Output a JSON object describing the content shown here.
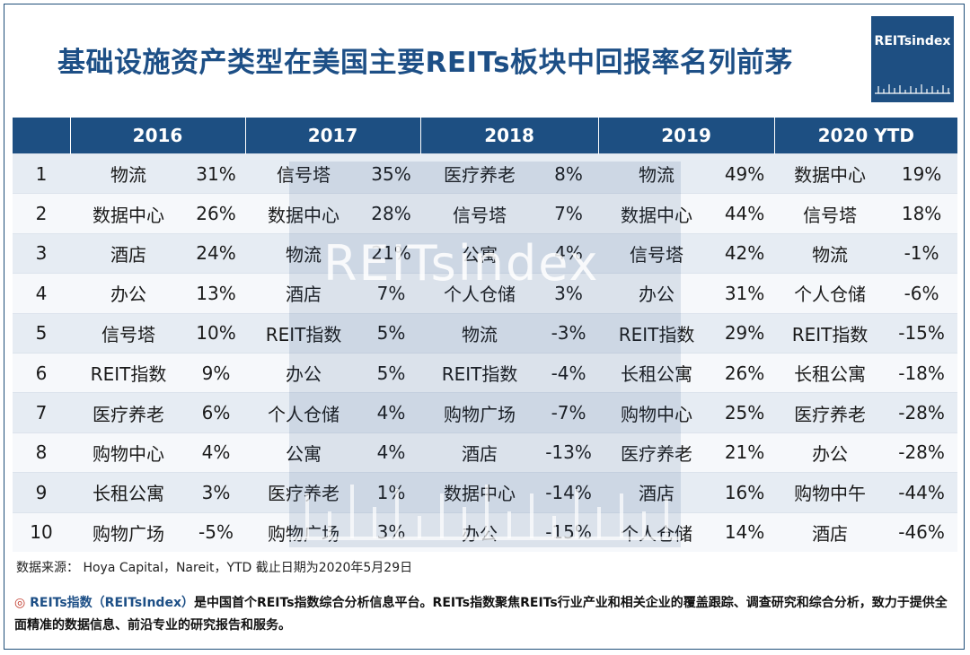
{
  "title": "基础设施资产类型在美国主要REITs板块中回报率名列前茅",
  "logo": {
    "text": "REITsindex"
  },
  "watermark": "REITsindex",
  "years": [
    "2016",
    "2017",
    "2018",
    "2019",
    "2020 YTD"
  ],
  "rows": [
    {
      "rank": "1",
      "cells": [
        [
          "物流",
          "31%"
        ],
        [
          "信号塔",
          "35%"
        ],
        [
          "医疗养老",
          "8%"
        ],
        [
          "物流",
          "49%"
        ],
        [
          "数据中心",
          "19%"
        ]
      ]
    },
    {
      "rank": "2",
      "cells": [
        [
          "数据中心",
          "26%"
        ],
        [
          "数据中心",
          "28%"
        ],
        [
          "信号塔",
          "7%"
        ],
        [
          "数据中心",
          "44%"
        ],
        [
          "信号塔",
          "18%"
        ]
      ]
    },
    {
      "rank": "3",
      "cells": [
        [
          "酒店",
          "24%"
        ],
        [
          "物流",
          "21%"
        ],
        [
          "公寓",
          "4%"
        ],
        [
          "信号塔",
          "42%"
        ],
        [
          "物流",
          "-1%"
        ]
      ]
    },
    {
      "rank": "4",
      "cells": [
        [
          "办公",
          "13%"
        ],
        [
          "酒店",
          "7%"
        ],
        [
          "个人仓储",
          "3%"
        ],
        [
          "办公",
          "31%"
        ],
        [
          "个人仓储",
          "-6%"
        ]
      ]
    },
    {
      "rank": "5",
      "cells": [
        [
          "信号塔",
          "10%"
        ],
        [
          "REIT指数",
          "5%"
        ],
        [
          "物流",
          "-3%"
        ],
        [
          "REIT指数",
          "29%"
        ],
        [
          "REIT指数",
          "-15%"
        ]
      ]
    },
    {
      "rank": "6",
      "cells": [
        [
          "REIT指数",
          "9%"
        ],
        [
          "办公",
          "5%"
        ],
        [
          "REIT指数",
          "-4%"
        ],
        [
          "长租公寓",
          "26%"
        ],
        [
          "长租公寓",
          "-18%"
        ]
      ]
    },
    {
      "rank": "7",
      "cells": [
        [
          "医疗养老",
          "6%"
        ],
        [
          "个人仓储",
          "4%"
        ],
        [
          "购物广场",
          "-7%"
        ],
        [
          "购物中心",
          "25%"
        ],
        [
          "医疗养老",
          "-28%"
        ]
      ]
    },
    {
      "rank": "8",
      "cells": [
        [
          "购物中心",
          "4%"
        ],
        [
          "公寓",
          "4%"
        ],
        [
          "酒店",
          "-13%"
        ],
        [
          "医疗养老",
          "21%"
        ],
        [
          "办公",
          "-28%"
        ]
      ]
    },
    {
      "rank": "9",
      "cells": [
        [
          "长租公寓",
          "3%"
        ],
        [
          "医疗养老",
          "1%"
        ],
        [
          "数据中心",
          "-14%"
        ],
        [
          "酒店",
          "16%"
        ],
        [
          "购物中午",
          "-44%"
        ]
      ]
    },
    {
      "rank": "10",
      "cells": [
        [
          "购物广场",
          "-5%"
        ],
        [
          "购物广场",
          "3%"
        ],
        [
          "办公",
          "-15%"
        ],
        [
          "个人仓储",
          "14%"
        ],
        [
          "酒店",
          "-46%"
        ]
      ]
    }
  ],
  "source": "数据来源：   Hoya Capital，Nareit，YTD  截止日期为2020年5月29日",
  "description": {
    "bullet": "◎",
    "brand": "REITs指数（REITsIndex）",
    "text": "是中国首个REITs指数综合分析信息平台。REITs指数聚焦REITs行业产业和相关企业的覆盖跟踪、调查研究和综合分析，致力于提供全面精准的数据信息、前沿专业的研究报告和服务。"
  },
  "colors": {
    "header": "#1d4f82",
    "title": "#1d4f86",
    "row_odd": "#e6ecf3",
    "row_even": "#f6f8fb"
  }
}
